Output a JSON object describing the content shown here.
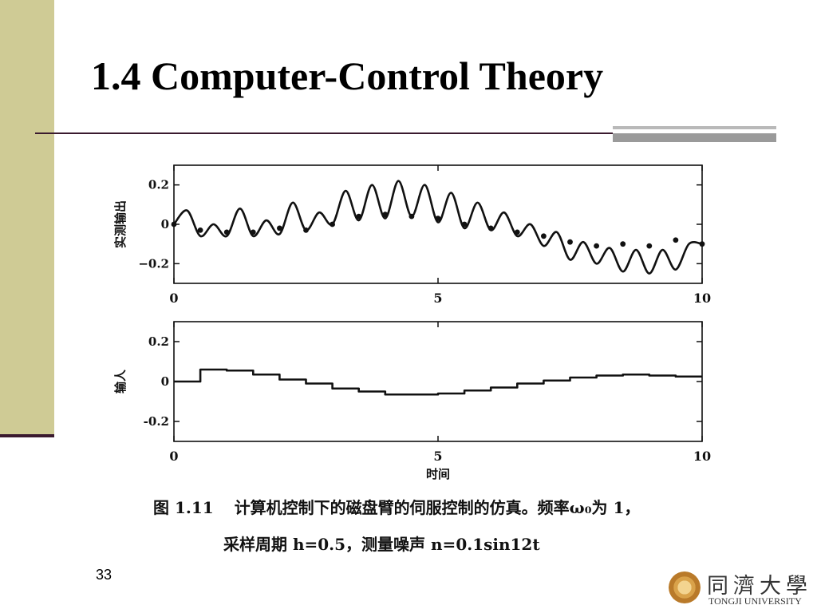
{
  "slide": {
    "title": "1.4 Computer-Control Theory",
    "page_number": "33",
    "caption": {
      "fig_label": "图 1.11",
      "line1": "计算机控制下的磁盘臂的伺服控制的仿真。频率ω₀为 1，",
      "line2": "采样周期 h=0.5，测量噪声 n=0.1sin12t"
    },
    "logo": {
      "cn": "同濟大學",
      "en": "TONGJI UNIVERSITY"
    }
  },
  "colors": {
    "sidebar": "#cfcb95",
    "rule": "#3a1a2e",
    "accent_gray": "#9a9a9a",
    "ink": "#111111"
  },
  "chart_data": [
    {
      "type": "line",
      "ylabel": "实测输出",
      "xlim": [
        0,
        10
      ],
      "ylim": [
        -0.3,
        0.3
      ],
      "xticks": [
        0,
        5,
        10
      ],
      "yticks": [
        0.2,
        0,
        -0.2
      ],
      "ytick_labels": [
        "0.2",
        "0",
        "−0.2"
      ],
      "series": [
        {
          "x": [
            0,
            0.25,
            0.5,
            0.75,
            1,
            1.25,
            1.5,
            1.75,
            2,
            2.25,
            2.5,
            2.75,
            3,
            3.25,
            3.5,
            3.75,
            4,
            4.25,
            4.5,
            4.75,
            5,
            5.25,
            5.5,
            5.75,
            6,
            6.25,
            6.5,
            6.75,
            7,
            7.25,
            7.5,
            7.75,
            8,
            8.25,
            8.5,
            8.75,
            9,
            9.25,
            9.5,
            9.75,
            10
          ],
          "y": [
            0.0,
            0.07,
            -0.06,
            0.0,
            -0.06,
            0.08,
            -0.06,
            0.02,
            -0.05,
            0.11,
            -0.03,
            0.06,
            0.0,
            0.17,
            0.02,
            0.2,
            0.03,
            0.22,
            0.04,
            0.2,
            0.01,
            0.16,
            -0.02,
            0.11,
            -0.03,
            0.06,
            -0.06,
            0.0,
            -0.11,
            -0.04,
            -0.18,
            -0.09,
            -0.2,
            -0.12,
            -0.24,
            -0.13,
            -0.25,
            -0.13,
            -0.23,
            -0.1,
            -0.1
          ]
        }
      ],
      "sample_points": {
        "x": [
          0,
          0.5,
          1,
          1.5,
          2,
          2.5,
          3,
          3.5,
          4,
          4.5,
          5,
          5.5,
          6,
          6.5,
          7,
          7.5,
          8,
          8.5,
          9,
          9.5,
          10
        ],
        "y": [
          0.0,
          -0.03,
          -0.04,
          -0.04,
          -0.02,
          -0.03,
          0.0,
          0.04,
          0.05,
          0.04,
          0.03,
          0.0,
          -0.02,
          -0.04,
          -0.06,
          -0.09,
          -0.11,
          -0.1,
          -0.11,
          -0.08,
          -0.1
        ]
      }
    },
    {
      "type": "line",
      "step": true,
      "ylabel": "输人",
      "xlabel": "时间",
      "xlim": [
        0,
        10
      ],
      "ylim": [
        -0.3,
        0.3
      ],
      "xticks": [
        0,
        5,
        10
      ],
      "yticks": [
        0.2,
        0,
        -0.2
      ],
      "ytick_labels": [
        "0.2",
        "0",
        "-0.2"
      ],
      "series": [
        {
          "x": [
            0,
            0.5,
            1,
            1.5,
            2,
            2.5,
            3,
            3.5,
            4,
            4.5,
            5,
            5.5,
            6,
            6.5,
            7,
            7.5,
            8,
            8.5,
            9,
            9.5
          ],
          "y": [
            0.0,
            0.06,
            0.055,
            0.035,
            0.01,
            -0.01,
            -0.035,
            -0.05,
            -0.065,
            -0.065,
            -0.06,
            -0.045,
            -0.03,
            -0.01,
            0.005,
            0.02,
            0.03,
            0.035,
            0.03,
            0.025
          ]
        }
      ]
    }
  ]
}
